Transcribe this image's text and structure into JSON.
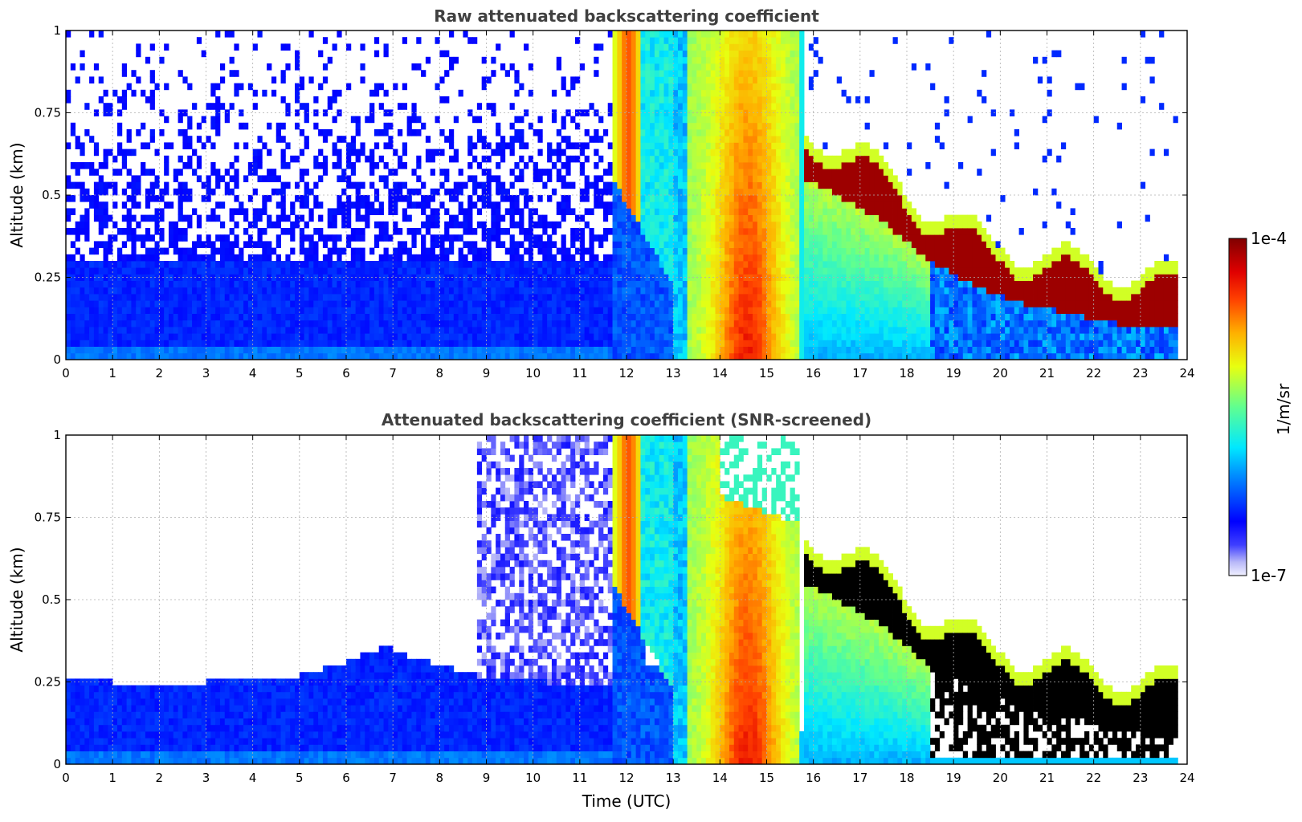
{
  "chart_data": [
    {
      "type": "heatmap",
      "title": "Raw attenuated backscattering coefficient",
      "xlabel": "",
      "ylabel": "Altitude (km)",
      "xlim": [
        0,
        24
      ],
      "ylim": [
        0,
        1
      ],
      "xticks": [
        "0",
        "1",
        "2",
        "3",
        "4",
        "5",
        "6",
        "7",
        "8",
        "9",
        "10",
        "11",
        "12",
        "13",
        "14",
        "15",
        "16",
        "17",
        "18",
        "19",
        "20",
        "21",
        "22",
        "23",
        "24"
      ],
      "yticks": [
        "0",
        "0.25",
        "0.5",
        "0.75",
        "1"
      ],
      "yticks_values": [
        0,
        0.25,
        0.5,
        0.75,
        1
      ],
      "grid": true,
      "colorscale": "jet (log)",
      "features": {
        "night_background_top": 0.3,
        "fog_start_hour": 11.7,
        "fog_end_hour": 15.7,
        "cloud_base_km": [
          [
            15.8,
            0.55
          ],
          [
            16.5,
            0.5
          ],
          [
            17.5,
            0.42
          ],
          [
            18.5,
            0.3
          ],
          [
            19.5,
            0.22
          ],
          [
            20.5,
            0.17
          ],
          [
            21.5,
            0.14
          ],
          [
            22.5,
            0.11
          ],
          [
            23.8,
            0.09
          ]
        ]
      }
    },
    {
      "type": "heatmap",
      "title": "Attenuated backscattering coefficient (SNR-screened)",
      "xlabel": "Time (UTC)",
      "ylabel": "Altitude (km)",
      "xlim": [
        0,
        24
      ],
      "ylim": [
        0,
        1
      ],
      "xticks": [
        "0",
        "1",
        "2",
        "3",
        "4",
        "5",
        "6",
        "7",
        "8",
        "9",
        "10",
        "11",
        "12",
        "13",
        "14",
        "15",
        "16",
        "17",
        "18",
        "19",
        "20",
        "21",
        "22",
        "23",
        "24"
      ],
      "yticks": [
        "0",
        "0.25",
        "0.5",
        "0.75",
        "1"
      ],
      "yticks_values": [
        0,
        0.25,
        0.5,
        0.75,
        1
      ],
      "grid": true,
      "colorscale": "jet (log), saturated values shown black",
      "boundary_layer_top_km": [
        [
          0,
          0.25
        ],
        [
          1,
          0.25
        ],
        [
          2,
          0.245
        ],
        [
          3,
          0.25
        ],
        [
          4,
          0.26
        ],
        [
          5,
          0.27
        ],
        [
          5.5,
          0.29
        ],
        [
          6,
          0.31
        ],
        [
          6.5,
          0.34
        ],
        [
          6.9,
          0.36
        ],
        [
          7.3,
          0.33
        ],
        [
          8,
          0.3
        ],
        [
          8.8,
          0.27
        ],
        [
          11,
          0.24
        ],
        [
          13,
          0.24
        ]
      ]
    }
  ],
  "colorbar": {
    "label": "1/m/sr",
    "max_label": "1e-4",
    "min_label": "1e-7"
  }
}
